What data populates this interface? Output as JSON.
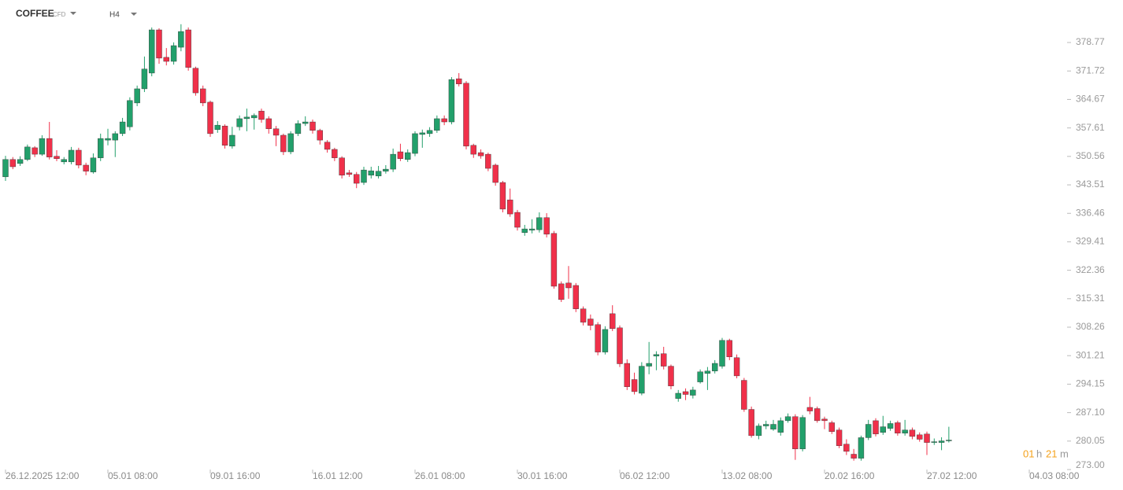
{
  "chart_data": {
    "type": "candlestick",
    "symbol": "COFFEE",
    "symbol_type": "CFD",
    "timeframe": "H4",
    "countdown": {
      "hours": "01",
      "hours_unit": "h",
      "minutes": "21",
      "minutes_unit": "m"
    },
    "up_color": "#22a06b",
    "down_color": "#f0304a",
    "categories": [
      "26.12.2025 12:00",
      null,
      null,
      null,
      null,
      null,
      null,
      null,
      null,
      null,
      null,
      null,
      null,
      null,
      "05.01 08:00",
      null,
      null,
      null,
      null,
      null,
      null,
      null,
      null,
      null,
      null,
      null,
      null,
      null,
      "09.01 16:00",
      null,
      null,
      null,
      null,
      null,
      null,
      null,
      null,
      null,
      null,
      null,
      null,
      null,
      "16.01 12:00",
      null,
      null,
      null,
      null,
      null,
      null,
      null,
      null,
      null,
      null,
      null,
      null,
      null,
      "26.01 08:00",
      null,
      null,
      null,
      null,
      null,
      null,
      null,
      null,
      null,
      null,
      null,
      null,
      null,
      "30.01 16:00",
      null,
      null,
      null,
      null,
      null,
      null,
      null,
      null,
      null,
      null,
      null,
      null,
      null,
      "06.02 12:00",
      null,
      null,
      null,
      null,
      null,
      null,
      null,
      null,
      null,
      null,
      null,
      null,
      null,
      "13.02 08:00",
      null,
      null,
      null,
      null,
      null,
      null,
      null,
      null,
      null,
      null,
      null,
      null,
      null,
      "20.02 16:00",
      null,
      null,
      null,
      null,
      null,
      null,
      null,
      null,
      null,
      null,
      null,
      null,
      null,
      "27.02 12:00",
      null,
      null,
      null,
      null,
      null,
      null,
      null,
      null,
      null,
      null,
      null,
      null,
      null,
      "04.03 08:00"
    ],
    "open": [
      345.5,
      349.8,
      348.8,
      349.8,
      352.7,
      351.1,
      355.0,
      350.6,
      349.2,
      349.2,
      352.1,
      348.4,
      346.7,
      350.2,
      354.6,
      354.6,
      356.2,
      357.9,
      363.8,
      367.3,
      371.2,
      381.9,
      375.1,
      374.1,
      377.6,
      381.9,
      372.4,
      367.3,
      364.0,
      357.2,
      358.1,
      353.1,
      357.9,
      359.9,
      360.1,
      361.8,
      359.9,
      357.4,
      355.8,
      351.7,
      356.2,
      358.7,
      359.1,
      357.0,
      354.1,
      352.3,
      350.2,
      346.5,
      346.1,
      344.1,
      345.9,
      345.7,
      346.9,
      347.4,
      351.7,
      349.8,
      351.3,
      356.0,
      356.2,
      357.0,
      359.9,
      359.1,
      369.8,
      368.7,
      353.3,
      351.5,
      351.1,
      348.4,
      344.1,
      339.8,
      336.7,
      331.7,
      332.3,
      332.4,
      335.4,
      331.5,
      319.0,
      319.2,
      318.6,
      312.8,
      310.3,
      308.9,
      302.1,
      311.6,
      308.1,
      299.3,
      295.3,
      291.9,
      298.6,
      301.1,
      301.7,
      298.6,
      290.6,
      292.3,
      291.4,
      294.7,
      296.8,
      297.4,
      298.6,
      305.0,
      300.7,
      295.1,
      287.9,
      281.4,
      283.8,
      283.0,
      282.2,
      285.1,
      286.1,
      278.1,
      288.4,
      288.1,
      285.5,
      284.6,
      282.8,
      279.3,
      276.8,
      275.8,
      280.9,
      285.1,
      282.2,
      283.2,
      284.6,
      282.0,
      282.8,
      281.6,
      281.8,
      279.7,
      279.7,
      280.1,
      null,
      null,
      null,
      null,
      null,
      null,
      null,
      null,
      null,
      null,
      null
    ],
    "high": [
      350.7,
      350.4,
      350.6,
      353.5,
      353.1,
      355.8,
      359.1,
      352.1,
      350.4,
      352.9,
      352.7,
      349.0,
      351.3,
      356.2,
      357.4,
      356.8,
      360.1,
      365.2,
      368.1,
      375.3,
      382.5,
      382.3,
      377.4,
      378.8,
      383.3,
      382.5,
      372.8,
      368.1,
      364.4,
      359.3,
      358.5,
      357.9,
      360.7,
      362.4,
      361.2,
      362.4,
      360.5,
      358.1,
      356.2,
      356.8,
      359.5,
      360.5,
      359.7,
      357.4,
      354.6,
      352.7,
      350.6,
      347.2,
      346.7,
      348.0,
      348.0,
      348.2,
      348.4,
      352.5,
      353.7,
      352.3,
      356.8,
      357.2,
      357.8,
      360.7,
      360.7,
      370.2,
      371.2,
      369.2,
      353.7,
      352.3,
      351.5,
      348.8,
      344.5,
      342.6,
      337.3,
      333.6,
      335.0,
      336.7,
      336.5,
      332.1,
      319.6,
      323.4,
      319.2,
      313.4,
      311.4,
      309.5,
      308.5,
      313.7,
      308.7,
      300.3,
      297.0,
      299.6,
      304.6,
      302.3,
      303.4,
      299.0,
      292.7,
      293.1,
      293.5,
      297.8,
      298.4,
      300.1,
      305.6,
      305.4,
      301.5,
      295.7,
      288.6,
      284.4,
      285.1,
      285.3,
      285.9,
      286.9,
      286.7,
      286.5,
      291.0,
      288.6,
      286.1,
      285.1,
      283.4,
      280.5,
      278.1,
      281.4,
      285.3,
      285.7,
      286.3,
      285.1,
      285.1,
      285.3,
      283.4,
      282.2,
      282.4,
      280.7,
      281.0,
      283.6,
      null,
      null,
      null,
      null,
      null,
      null,
      null,
      null,
      null,
      null,
      null
    ],
    "low": [
      344.5,
      347.4,
      348.2,
      349.4,
      350.4,
      350.7,
      349.8,
      349.4,
      348.6,
      348.6,
      347.6,
      345.9,
      346.3,
      349.4,
      353.3,
      350.4,
      355.6,
      357.0,
      363.0,
      366.5,
      370.4,
      373.5,
      373.1,
      373.3,
      376.6,
      371.8,
      365.6,
      363.0,
      355.4,
      356.4,
      352.5,
      352.5,
      357.0,
      356.8,
      357.2,
      358.9,
      356.2,
      353.1,
      350.9,
      351.1,
      355.6,
      358.1,
      356.2,
      353.5,
      351.5,
      349.4,
      345.1,
      345.5,
      342.7,
      343.5,
      345.1,
      345.1,
      346.3,
      346.7,
      349.4,
      349.2,
      350.6,
      352.7,
      355.4,
      356.4,
      358.3,
      358.5,
      367.9,
      352.3,
      350.2,
      350.0,
      346.9,
      343.3,
      336.7,
      335.6,
      332.2,
      330.9,
      331.5,
      331.7,
      330.5,
      317.8,
      314.5,
      315.3,
      312.0,
      308.7,
      307.5,
      301.3,
      301.5,
      307.3,
      298.4,
      292.7,
      291.6,
      291.4,
      296.6,
      297.6,
      297.8,
      292.9,
      289.8,
      290.2,
      290.6,
      294.3,
      292.7,
      296.8,
      298.0,
      300.1,
      295.6,
      287.3,
      280.9,
      280.5,
      283.0,
      282.6,
      281.4,
      284.6,
      275.4,
      277.5,
      286.7,
      284.6,
      283.0,
      281.8,
      278.3,
      276.6,
      275.2,
      275.2,
      280.3,
      281.2,
      281.6,
      282.6,
      281.4,
      281.4,
      280.5,
      279.9,
      276.6,
      279.1,
      277.8,
      279.7,
      null,
      null,
      null,
      null,
      null,
      null,
      null,
      null,
      null,
      null,
      null
    ],
    "close": [
      349.8,
      348.0,
      349.8,
      352.9,
      351.1,
      355.0,
      350.4,
      350.0,
      349.8,
      352.1,
      348.4,
      346.9,
      350.2,
      355.0,
      355.0,
      356.2,
      359.1,
      364.4,
      367.3,
      372.2,
      381.9,
      374.9,
      374.1,
      378.0,
      381.5,
      372.6,
      366.3,
      363.8,
      356.2,
      358.3,
      353.3,
      355.8,
      359.9,
      360.3,
      360.7,
      359.7,
      357.4,
      355.8,
      351.7,
      356.2,
      358.7,
      359.1,
      357.0,
      354.6,
      352.3,
      350.2,
      345.9,
      346.1,
      343.9,
      347.2,
      347.0,
      346.9,
      347.4,
      351.1,
      350.0,
      351.5,
      356.2,
      356.4,
      357.0,
      359.9,
      359.1,
      369.6,
      368.5,
      353.1,
      351.1,
      350.7,
      347.6,
      344.1,
      337.5,
      336.3,
      333.0,
      332.6,
      332.6,
      335.4,
      331.3,
      318.4,
      315.1,
      318.0,
      312.8,
      309.5,
      308.7,
      302.1,
      307.7,
      307.9,
      299.2,
      293.5,
      292.3,
      298.6,
      299.3,
      301.5,
      298.6,
      293.7,
      291.9,
      291.6,
      292.7,
      297.2,
      297.4,
      299.3,
      305.0,
      300.9,
      296.2,
      287.9,
      281.4,
      283.8,
      284.2,
      284.2,
      285.1,
      286.1,
      278.1,
      285.9,
      287.5,
      285.1,
      285.1,
      282.4,
      278.9,
      277.5,
      275.8,
      280.9,
      284.2,
      281.8,
      283.6,
      284.4,
      282.0,
      282.8,
      281.2,
      280.5,
      279.7,
      279.9,
      280.1,
      280.3,
      null,
      null,
      null,
      null,
      null,
      null,
      null,
      null,
      null,
      null,
      null
    ],
    "ylim": [
      273,
      389.3
    ],
    "yticks": [
      {
        "value": 273,
        "label": "273.00"
      },
      280.05,
      {
        "value": 287.1,
        "label": "287.10"
      },
      294.15,
      301.21,
      308.26,
      315.31,
      322.36,
      329.41,
      336.46,
      343.51,
      350.56,
      357.61,
      364.67,
      371.72,
      378.77
    ]
  }
}
